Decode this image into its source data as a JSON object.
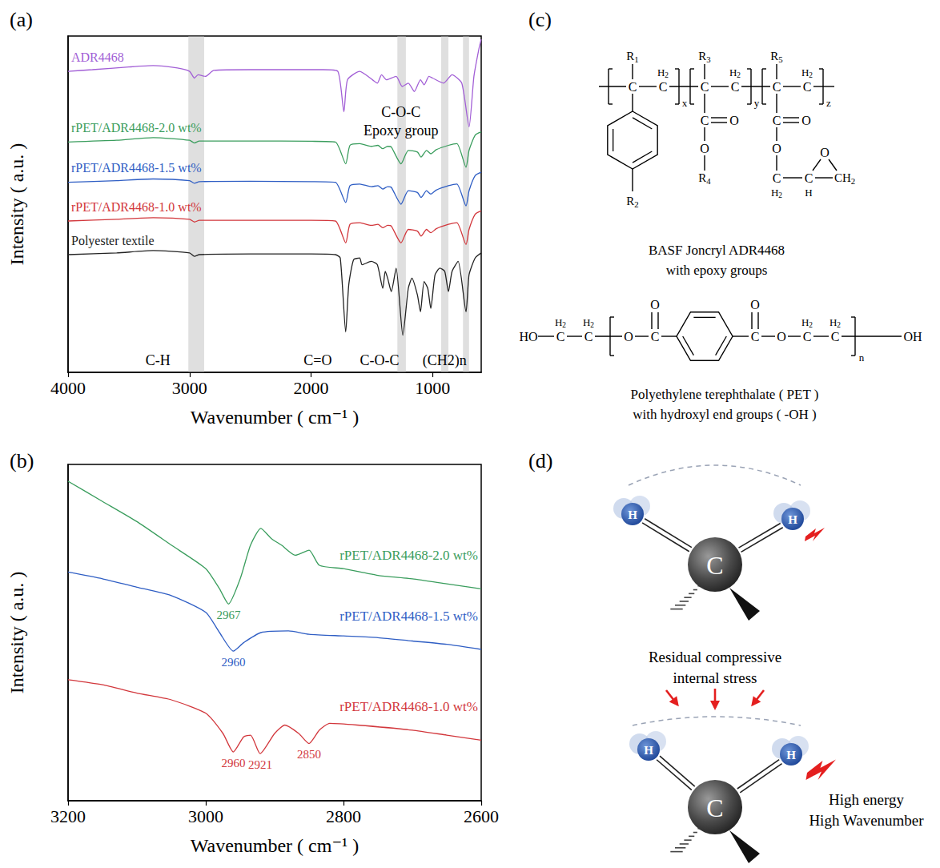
{
  "chart_data": [
    {
      "type": "line",
      "panel": "(a)",
      "x_label": "Wavenumber ( cm⁻¹ )",
      "y_label": "Intensity ( a.u. )",
      "xlim": [
        4000,
        600
      ],
      "xticks": [
        4000,
        3000,
        2000,
        1000
      ],
      "ylim": [
        0,
        10
      ],
      "tick_labels": "x",
      "grid": false,
      "bands": [
        [
          3010,
          2880
        ],
        [
          1290,
          1220
        ],
        [
          930,
          870
        ],
        [
          750,
          700
        ]
      ],
      "annotations": [
        {
          "text": "C-H",
          "x": 3260,
          "y": 0.35
        },
        {
          "text": "C=O",
          "x": 1945,
          "y": 0.35
        },
        {
          "text": "C-O-C",
          "x": 1437,
          "y": 0.35
        },
        {
          "text": "(CH2)n",
          "x": 902,
          "y": 0.35
        },
        {
          "text": "C-O-C",
          "x": 1260,
          "y": 7.75
        },
        {
          "text": "Epoxy group",
          "x": 1260,
          "y": 7.2
        }
      ],
      "series": [
        {
          "name": "ADR4468",
          "color": "#a25fd6",
          "points": [
            [
              4000,
              8.95
            ],
            [
              3800,
              9.0
            ],
            [
              3500,
              9.08
            ],
            [
              3300,
              9.12
            ],
            [
              3100,
              9.05
            ],
            [
              3000,
              8.95
            ],
            [
              2960,
              8.75
            ],
            [
              2930,
              8.85
            ],
            [
              2870,
              8.8
            ],
            [
              2800,
              8.98
            ],
            [
              2500,
              9.0
            ],
            [
              2200,
              9.0
            ],
            [
              1900,
              9.0
            ],
            [
              1780,
              8.95
            ],
            [
              1730,
              7.75
            ],
            [
              1700,
              8.7
            ],
            [
              1600,
              8.95
            ],
            [
              1495,
              8.7
            ],
            [
              1455,
              8.6
            ],
            [
              1420,
              8.85
            ],
            [
              1380,
              8.7
            ],
            [
              1300,
              8.8
            ],
            [
              1250,
              8.5
            ],
            [
              1200,
              8.6
            ],
            [
              1150,
              8.35
            ],
            [
              1100,
              8.7
            ],
            [
              1070,
              8.55
            ],
            [
              1030,
              8.8
            ],
            [
              1000,
              8.75
            ],
            [
              910,
              8.6
            ],
            [
              840,
              8.85
            ],
            [
              760,
              8.6
            ],
            [
              700,
              7.3
            ],
            [
              660,
              8.8
            ],
            [
              620,
              9.6
            ],
            [
              600,
              9.9
            ]
          ]
        },
        {
          "name": "rPET/ADR4468-2.0 wt%",
          "color": "#3a9d5d",
          "points": [
            [
              4000,
              6.85
            ],
            [
              3600,
              6.9
            ],
            [
              3300,
              6.98
            ],
            [
              3000,
              6.9
            ],
            [
              2960,
              6.82
            ],
            [
              2920,
              6.88
            ],
            [
              2500,
              6.88
            ],
            [
              2000,
              6.87
            ],
            [
              1800,
              6.85
            ],
            [
              1715,
              6.2
            ],
            [
              1680,
              6.75
            ],
            [
              1600,
              6.8
            ],
            [
              1505,
              6.72
            ],
            [
              1450,
              6.75
            ],
            [
              1410,
              6.65
            ],
            [
              1370,
              6.72
            ],
            [
              1340,
              6.7
            ],
            [
              1260,
              6.2
            ],
            [
              1200,
              6.6
            ],
            [
              1125,
              6.55
            ],
            [
              1095,
              6.4
            ],
            [
              1050,
              6.6
            ],
            [
              1015,
              6.5
            ],
            [
              970,
              6.62
            ],
            [
              870,
              6.75
            ],
            [
              800,
              6.8
            ],
            [
              725,
              6.1
            ],
            [
              700,
              6.6
            ],
            [
              650,
              7.05
            ],
            [
              600,
              7.15
            ]
          ]
        },
        {
          "name": "rPET/ADR4468-1.5 wt%",
          "color": "#2f5ec4",
          "points": [
            [
              4000,
              5.65
            ],
            [
              3600,
              5.7
            ],
            [
              3300,
              5.75
            ],
            [
              3000,
              5.7
            ],
            [
              2960,
              5.62
            ],
            [
              2920,
              5.67
            ],
            [
              2500,
              5.68
            ],
            [
              2000,
              5.67
            ],
            [
              1800,
              5.65
            ],
            [
              1715,
              5.05
            ],
            [
              1680,
              5.55
            ],
            [
              1600,
              5.6
            ],
            [
              1505,
              5.52
            ],
            [
              1450,
              5.55
            ],
            [
              1410,
              5.45
            ],
            [
              1370,
              5.52
            ],
            [
              1340,
              5.5
            ],
            [
              1260,
              5.0
            ],
            [
              1200,
              5.4
            ],
            [
              1125,
              5.35
            ],
            [
              1095,
              5.2
            ],
            [
              1050,
              5.4
            ],
            [
              1015,
              5.3
            ],
            [
              970,
              5.42
            ],
            [
              870,
              5.55
            ],
            [
              800,
              5.6
            ],
            [
              725,
              4.95
            ],
            [
              700,
              5.4
            ],
            [
              650,
              5.85
            ],
            [
              600,
              5.95
            ]
          ]
        },
        {
          "name": "rPET/ADR4468-1.0 wt%",
          "color": "#d2373c",
          "points": [
            [
              4000,
              4.5
            ],
            [
              3600,
              4.55
            ],
            [
              3300,
              4.6
            ],
            [
              3000,
              4.55
            ],
            [
              2960,
              4.47
            ],
            [
              2920,
              4.52
            ],
            [
              2500,
              4.52
            ],
            [
              2000,
              4.52
            ],
            [
              1800,
              4.5
            ],
            [
              1715,
              3.85
            ],
            [
              1680,
              4.4
            ],
            [
              1600,
              4.45
            ],
            [
              1505,
              4.37
            ],
            [
              1450,
              4.4
            ],
            [
              1410,
              4.3
            ],
            [
              1370,
              4.37
            ],
            [
              1340,
              4.35
            ],
            [
              1260,
              3.85
            ],
            [
              1200,
              4.25
            ],
            [
              1125,
              4.2
            ],
            [
              1095,
              4.05
            ],
            [
              1050,
              4.25
            ],
            [
              1015,
              4.15
            ],
            [
              970,
              4.27
            ],
            [
              870,
              4.4
            ],
            [
              800,
              4.45
            ],
            [
              725,
              3.8
            ],
            [
              700,
              4.25
            ],
            [
              650,
              4.7
            ],
            [
              600,
              4.8
            ]
          ]
        },
        {
          "name": "Polyester textile",
          "color": "#222222",
          "points": [
            [
              4000,
              3.5
            ],
            [
              3600,
              3.55
            ],
            [
              3300,
              3.62
            ],
            [
              3000,
              3.55
            ],
            [
              2960,
              3.45
            ],
            [
              2920,
              3.5
            ],
            [
              2500,
              3.52
            ],
            [
              2000,
              3.52
            ],
            [
              1800,
              3.5
            ],
            [
              1760,
              3.4
            ],
            [
              1715,
              1.2
            ],
            [
              1690,
              2.6
            ],
            [
              1650,
              3.35
            ],
            [
              1600,
              3.4
            ],
            [
              1580,
              3.2
            ],
            [
              1505,
              3.3
            ],
            [
              1455,
              3.2
            ],
            [
              1410,
              2.5
            ],
            [
              1390,
              3.0
            ],
            [
              1370,
              2.8
            ],
            [
              1340,
              2.4
            ],
            [
              1300,
              3.1
            ],
            [
              1245,
              1.1
            ],
            [
              1200,
              2.5
            ],
            [
              1170,
              2.8
            ],
            [
              1125,
              2.3
            ],
            [
              1100,
              1.8
            ],
            [
              1070,
              2.7
            ],
            [
              1040,
              2.5
            ],
            [
              1015,
              1.9
            ],
            [
              980,
              2.9
            ],
            [
              940,
              3.1
            ],
            [
              900,
              3.0
            ],
            [
              870,
              2.4
            ],
            [
              840,
              3.0
            ],
            [
              790,
              3.3
            ],
            [
              725,
              1.8
            ],
            [
              700,
              2.9
            ],
            [
              650,
              3.4
            ],
            [
              600,
              3.55
            ]
          ]
        }
      ]
    },
    {
      "type": "line",
      "panel": "(b)",
      "x_label": "Wavenumber ( cm⁻¹ )",
      "y_label": "Intensity ( a.u. )",
      "xlim": [
        3200,
        2600
      ],
      "xticks": [
        3200,
        3000,
        2800,
        2600
      ],
      "ylim": [
        0,
        10
      ],
      "tick_labels": "x",
      "grid": false,
      "series": [
        {
          "name": "rPET/ADR4468-2.0 wt%",
          "color": "#3a9d5d",
          "peaks": [
            2967
          ],
          "points": [
            [
              3200,
              9.5
            ],
            [
              3150,
              8.9
            ],
            [
              3100,
              8.3
            ],
            [
              3050,
              7.6
            ],
            [
              3000,
              6.9
            ],
            [
              2980,
              6.3
            ],
            [
              2967,
              5.85
            ],
            [
              2950,
              6.6
            ],
            [
              2935,
              7.6
            ],
            [
              2920,
              8.1
            ],
            [
              2905,
              7.8
            ],
            [
              2890,
              7.6
            ],
            [
              2870,
              7.3
            ],
            [
              2850,
              7.45
            ],
            [
              2835,
              7.0
            ],
            [
              2800,
              6.9
            ],
            [
              2750,
              6.7
            ],
            [
              2700,
              6.6
            ],
            [
              2650,
              6.45
            ],
            [
              2600,
              6.3
            ]
          ]
        },
        {
          "name": "rPET/ADR4468-1.5 wt%",
          "color": "#2f5ec4",
          "peaks": [
            2960
          ],
          "points": [
            [
              3200,
              6.8
            ],
            [
              3150,
              6.6
            ],
            [
              3100,
              6.35
            ],
            [
              3050,
              6.1
            ],
            [
              3000,
              5.6
            ],
            [
              2980,
              5.0
            ],
            [
              2960,
              4.45
            ],
            [
              2945,
              4.7
            ],
            [
              2920,
              5.0
            ],
            [
              2880,
              5.05
            ],
            [
              2850,
              4.95
            ],
            [
              2800,
              4.9
            ],
            [
              2750,
              4.85
            ],
            [
              2700,
              4.75
            ],
            [
              2650,
              4.65
            ],
            [
              2600,
              4.5
            ]
          ]
        },
        {
          "name": "rPET/ADR4468-1.0 wt%",
          "color": "#d2373c",
          "peaks": [
            2960,
            2921,
            2850
          ],
          "points": [
            [
              3200,
              3.6
            ],
            [
              3150,
              3.45
            ],
            [
              3100,
              3.2
            ],
            [
              3050,
              3.0
            ],
            [
              3000,
              2.6
            ],
            [
              2975,
              2.0
            ],
            [
              2960,
              1.45
            ],
            [
              2945,
              1.9
            ],
            [
              2935,
              1.95
            ],
            [
              2921,
              1.4
            ],
            [
              2900,
              2.0
            ],
            [
              2885,
              2.25
            ],
            [
              2865,
              2.0
            ],
            [
              2850,
              1.7
            ],
            [
              2835,
              2.1
            ],
            [
              2820,
              2.3
            ],
            [
              2780,
              2.25
            ],
            [
              2700,
              2.1
            ],
            [
              2650,
              1.95
            ],
            [
              2600,
              1.8
            ]
          ]
        }
      ]
    }
  ],
  "diagram": {
    "c": {
      "panel": "(c)",
      "joncryl": {
        "carbon": "C",
        "methylene": "H2",
        "hydrogen": "H",
        "oxygen": "O",
        "ch2": "CH2",
        "substituents": [
          "R1",
          "R2",
          "R3",
          "R4",
          "R5"
        ],
        "repeats": [
          "x",
          "y",
          "z"
        ],
        "caption": [
          "BASF Joncryl ADR4468",
          "with epoxy groups"
        ]
      },
      "pet": {
        "hydroxyl_start": "HO",
        "hydroxyl_end": "OH",
        "carbon": "C",
        "methylene": "H2",
        "oxygen": "O",
        "repeat": "n",
        "caption": [
          "Polyethylene terephthalate ( PET )",
          "with hydroxyl end groups ( -OH )"
        ]
      }
    },
    "d": {
      "panel": "(d)",
      "carbon": "C",
      "hydrogen": "H",
      "stress": [
        "Residual compressive",
        "internal stress"
      ],
      "effect": [
        "High energy",
        "High Wavenumber"
      ]
    }
  }
}
